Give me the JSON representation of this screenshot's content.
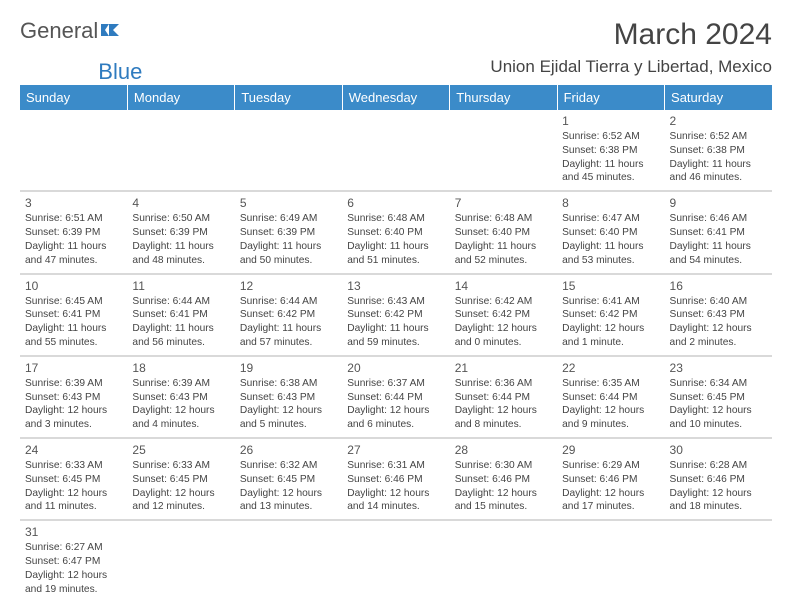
{
  "logo": {
    "text1": "General",
    "text2": "Blue"
  },
  "title": "March 2024",
  "subtitle": "Union Ejidal Tierra y Libertad, Mexico",
  "colors": {
    "header_bg": "#3b8bc9",
    "header_fg": "#ffffff",
    "cell_border": "#d9d9d9",
    "text": "#444444"
  },
  "weekdays": [
    "Sunday",
    "Monday",
    "Tuesday",
    "Wednesday",
    "Thursday",
    "Friday",
    "Saturday"
  ],
  "weeks": [
    [
      null,
      null,
      null,
      null,
      null,
      {
        "n": "1",
        "sr": "Sunrise: 6:52 AM",
        "ss": "Sunset: 6:38 PM",
        "dl": "Daylight: 11 hours and 45 minutes."
      },
      {
        "n": "2",
        "sr": "Sunrise: 6:52 AM",
        "ss": "Sunset: 6:38 PM",
        "dl": "Daylight: 11 hours and 46 minutes."
      }
    ],
    [
      {
        "n": "3",
        "sr": "Sunrise: 6:51 AM",
        "ss": "Sunset: 6:39 PM",
        "dl": "Daylight: 11 hours and 47 minutes."
      },
      {
        "n": "4",
        "sr": "Sunrise: 6:50 AM",
        "ss": "Sunset: 6:39 PM",
        "dl": "Daylight: 11 hours and 48 minutes."
      },
      {
        "n": "5",
        "sr": "Sunrise: 6:49 AM",
        "ss": "Sunset: 6:39 PM",
        "dl": "Daylight: 11 hours and 50 minutes."
      },
      {
        "n": "6",
        "sr": "Sunrise: 6:48 AM",
        "ss": "Sunset: 6:40 PM",
        "dl": "Daylight: 11 hours and 51 minutes."
      },
      {
        "n": "7",
        "sr": "Sunrise: 6:48 AM",
        "ss": "Sunset: 6:40 PM",
        "dl": "Daylight: 11 hours and 52 minutes."
      },
      {
        "n": "8",
        "sr": "Sunrise: 6:47 AM",
        "ss": "Sunset: 6:40 PM",
        "dl": "Daylight: 11 hours and 53 minutes."
      },
      {
        "n": "9",
        "sr": "Sunrise: 6:46 AM",
        "ss": "Sunset: 6:41 PM",
        "dl": "Daylight: 11 hours and 54 minutes."
      }
    ],
    [
      {
        "n": "10",
        "sr": "Sunrise: 6:45 AM",
        "ss": "Sunset: 6:41 PM",
        "dl": "Daylight: 11 hours and 55 minutes."
      },
      {
        "n": "11",
        "sr": "Sunrise: 6:44 AM",
        "ss": "Sunset: 6:41 PM",
        "dl": "Daylight: 11 hours and 56 minutes."
      },
      {
        "n": "12",
        "sr": "Sunrise: 6:44 AM",
        "ss": "Sunset: 6:42 PM",
        "dl": "Daylight: 11 hours and 57 minutes."
      },
      {
        "n": "13",
        "sr": "Sunrise: 6:43 AM",
        "ss": "Sunset: 6:42 PM",
        "dl": "Daylight: 11 hours and 59 minutes."
      },
      {
        "n": "14",
        "sr": "Sunrise: 6:42 AM",
        "ss": "Sunset: 6:42 PM",
        "dl": "Daylight: 12 hours and 0 minutes."
      },
      {
        "n": "15",
        "sr": "Sunrise: 6:41 AM",
        "ss": "Sunset: 6:42 PM",
        "dl": "Daylight: 12 hours and 1 minute."
      },
      {
        "n": "16",
        "sr": "Sunrise: 6:40 AM",
        "ss": "Sunset: 6:43 PM",
        "dl": "Daylight: 12 hours and 2 minutes."
      }
    ],
    [
      {
        "n": "17",
        "sr": "Sunrise: 6:39 AM",
        "ss": "Sunset: 6:43 PM",
        "dl": "Daylight: 12 hours and 3 minutes."
      },
      {
        "n": "18",
        "sr": "Sunrise: 6:39 AM",
        "ss": "Sunset: 6:43 PM",
        "dl": "Daylight: 12 hours and 4 minutes."
      },
      {
        "n": "19",
        "sr": "Sunrise: 6:38 AM",
        "ss": "Sunset: 6:43 PM",
        "dl": "Daylight: 12 hours and 5 minutes."
      },
      {
        "n": "20",
        "sr": "Sunrise: 6:37 AM",
        "ss": "Sunset: 6:44 PM",
        "dl": "Daylight: 12 hours and 6 minutes."
      },
      {
        "n": "21",
        "sr": "Sunrise: 6:36 AM",
        "ss": "Sunset: 6:44 PM",
        "dl": "Daylight: 12 hours and 8 minutes."
      },
      {
        "n": "22",
        "sr": "Sunrise: 6:35 AM",
        "ss": "Sunset: 6:44 PM",
        "dl": "Daylight: 12 hours and 9 minutes."
      },
      {
        "n": "23",
        "sr": "Sunrise: 6:34 AM",
        "ss": "Sunset: 6:45 PM",
        "dl": "Daylight: 12 hours and 10 minutes."
      }
    ],
    [
      {
        "n": "24",
        "sr": "Sunrise: 6:33 AM",
        "ss": "Sunset: 6:45 PM",
        "dl": "Daylight: 12 hours and 11 minutes."
      },
      {
        "n": "25",
        "sr": "Sunrise: 6:33 AM",
        "ss": "Sunset: 6:45 PM",
        "dl": "Daylight: 12 hours and 12 minutes."
      },
      {
        "n": "26",
        "sr": "Sunrise: 6:32 AM",
        "ss": "Sunset: 6:45 PM",
        "dl": "Daylight: 12 hours and 13 minutes."
      },
      {
        "n": "27",
        "sr": "Sunrise: 6:31 AM",
        "ss": "Sunset: 6:46 PM",
        "dl": "Daylight: 12 hours and 14 minutes."
      },
      {
        "n": "28",
        "sr": "Sunrise: 6:30 AM",
        "ss": "Sunset: 6:46 PM",
        "dl": "Daylight: 12 hours and 15 minutes."
      },
      {
        "n": "29",
        "sr": "Sunrise: 6:29 AM",
        "ss": "Sunset: 6:46 PM",
        "dl": "Daylight: 12 hours and 17 minutes."
      },
      {
        "n": "30",
        "sr": "Sunrise: 6:28 AM",
        "ss": "Sunset: 6:46 PM",
        "dl": "Daylight: 12 hours and 18 minutes."
      }
    ],
    [
      {
        "n": "31",
        "sr": "Sunrise: 6:27 AM",
        "ss": "Sunset: 6:47 PM",
        "dl": "Daylight: 12 hours and 19 minutes."
      },
      null,
      null,
      null,
      null,
      null,
      null
    ]
  ]
}
